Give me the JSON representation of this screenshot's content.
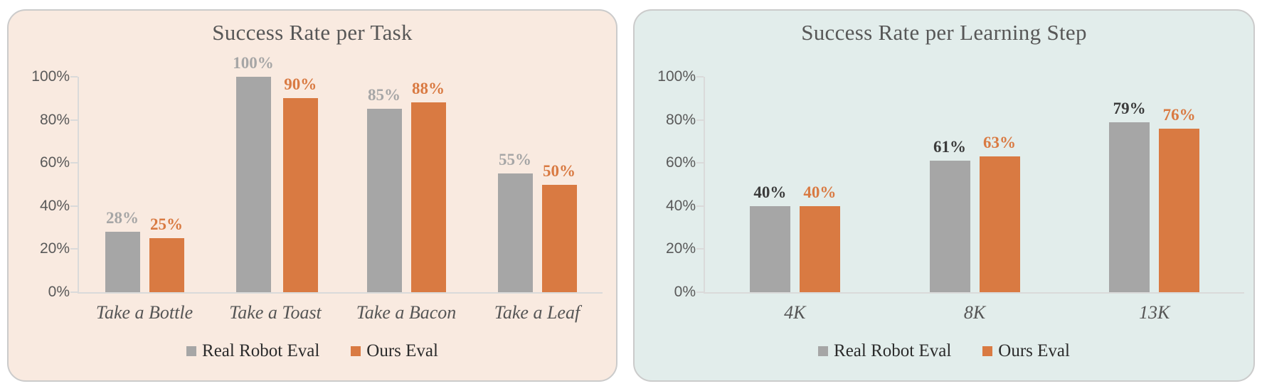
{
  "page": {
    "background": "#ffffff"
  },
  "colors": {
    "series_gray": "#a6a6a6",
    "series_orange": "#d97a42",
    "left_panel_bg": "#f9eae0",
    "right_panel_bg": "#e2edeb",
    "axis_line": "#dadada",
    "title_text": "#575757",
    "tick_text": "#595959"
  },
  "chart_data": [
    {
      "type": "bar",
      "title": "Success Rate per Task",
      "categories": [
        "Take a Bottle",
        "Take a Toast",
        "Take a Bacon",
        "Take a Leaf"
      ],
      "series": [
        {
          "name": "Real Robot Eval",
          "values": [
            28,
            100,
            85,
            55
          ],
          "color": "#a6a6a6",
          "label_color": "#a6a6a6"
        },
        {
          "name": "Ours Eval",
          "values": [
            25,
            90,
            88,
            50
          ],
          "color": "#d97a42",
          "label_color": "#d97a42"
        }
      ],
      "xlabel": "",
      "ylabel": "",
      "y_ticks": [
        "100%",
        "80%",
        "60%",
        "40%",
        "20%",
        "0%"
      ],
      "ylim": [
        0,
        100
      ],
      "value_suffix": "%",
      "data_labels": true,
      "grid": false,
      "legend_position": "bottom",
      "panel_bg": "#f9eae0"
    },
    {
      "type": "bar",
      "title": "Success Rate per Learning Step",
      "categories": [
        "4K",
        "8K",
        "13K"
      ],
      "series": [
        {
          "name": "Real Robot Eval",
          "values": [
            40,
            61,
            79
          ],
          "color": "#a6a6a6",
          "label_color": "#3b3b3b"
        },
        {
          "name": "Ours Eval",
          "values": [
            40,
            63,
            76
          ],
          "color": "#d97a42",
          "label_color": "#d97a42"
        }
      ],
      "xlabel": "",
      "ylabel": "",
      "y_ticks": [
        "100%",
        "80%",
        "60%",
        "40%",
        "20%",
        "0%"
      ],
      "ylim": [
        0,
        100
      ],
      "value_suffix": "%",
      "data_labels": true,
      "grid": false,
      "legend_position": "bottom",
      "panel_bg": "#e2edeb"
    }
  ]
}
